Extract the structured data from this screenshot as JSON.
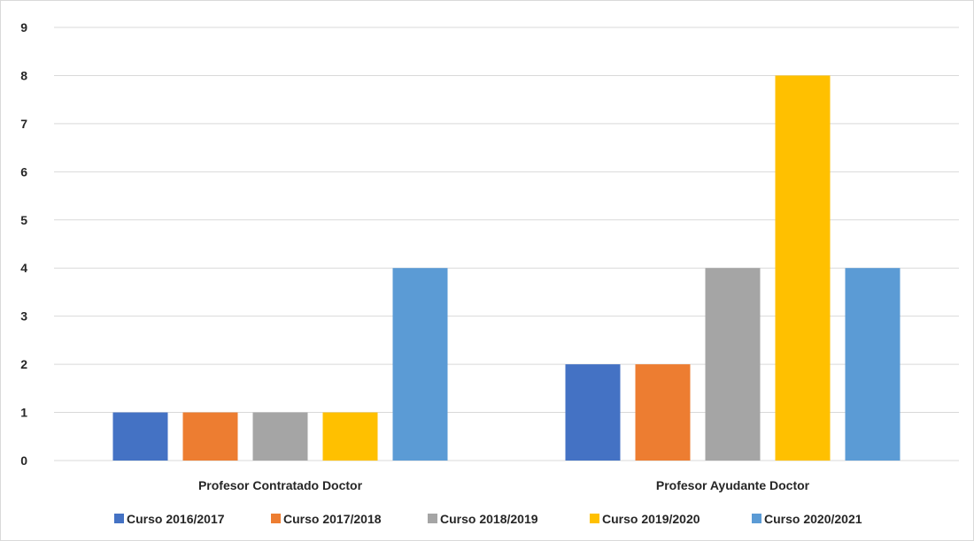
{
  "chart_data": {
    "type": "bar",
    "categories": [
      "Profesor Contratado Doctor",
      "Profesor Ayudante Doctor"
    ],
    "series": [
      {
        "name": "Curso 2016/2017",
        "values": [
          1,
          2
        ],
        "color": "#4472c4"
      },
      {
        "name": "Curso 2017/2018",
        "values": [
          1,
          2
        ],
        "color": "#ed7d31"
      },
      {
        "name": "Curso 2018/2019",
        "values": [
          1,
          4
        ],
        "color": "#a5a5a5"
      },
      {
        "name": "Curso 2019/2020",
        "values": [
          1,
          8
        ],
        "color": "#ffc000"
      },
      {
        "name": "Curso 2020/2021",
        "values": [
          4,
          4
        ],
        "color": "#5b9bd5"
      }
    ],
    "yticks": [
      "0",
      "1",
      "2",
      "3",
      "4",
      "5",
      "6",
      "7",
      "8",
      "9"
    ],
    "ylim": [
      0,
      9
    ],
    "grid": true,
    "legend_position": "bottom"
  }
}
